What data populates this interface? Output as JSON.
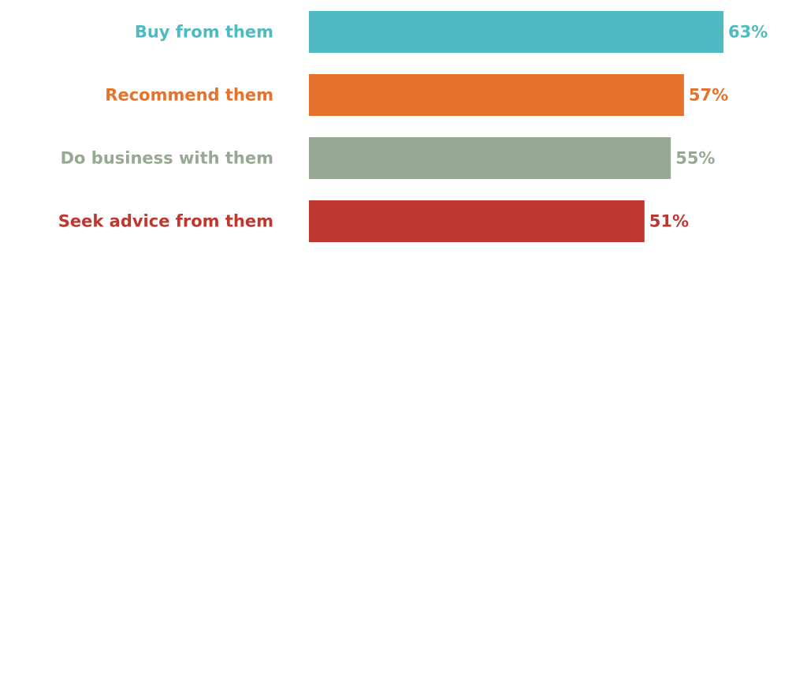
{
  "chart_data": {
    "type": "bar",
    "orientation": "horizontal",
    "categories": [
      "Buy from them",
      "Recommend them",
      "Do business with them",
      "Seek advice from them"
    ],
    "values": [
      63,
      57,
      55,
      51
    ],
    "value_labels": [
      "63%",
      "57%",
      "55%",
      "51%"
    ],
    "colors": [
      "#4fbac2",
      "#e5722d",
      "#98a993",
      "#bd3831"
    ],
    "value_unit": "%",
    "grid": false,
    "legend": "none"
  }
}
